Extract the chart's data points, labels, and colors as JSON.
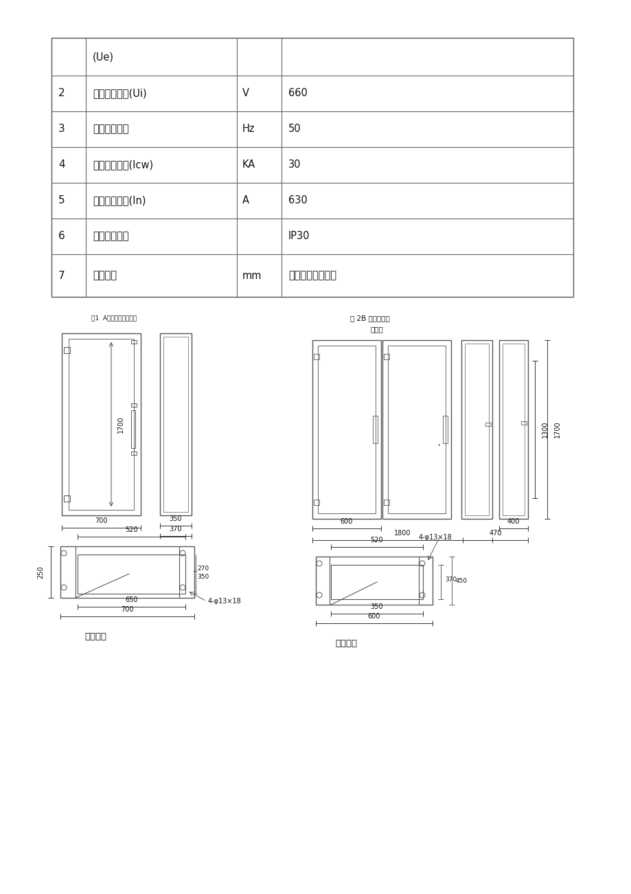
{
  "table_rows": [
    [
      "",
      "(Ue)",
      "",
      ""
    ],
    [
      "2",
      "额定绹缘电压(Ui)",
      "V",
      "660"
    ],
    [
      "3",
      "额定工作频率",
      "Hz",
      "50"
    ],
    [
      "4",
      "额定开断电流(Icw)",
      "KA",
      "30"
    ],
    [
      "5",
      "最大工作电流(In)",
      "A",
      "630"
    ],
    [
      "6",
      "外壳防护等级",
      "",
      "IP30"
    ],
    [
      "7",
      "外形尺寸",
      "mm",
      "具体根据方案确定"
    ]
  ],
  "fig_label1": "图1  A型结构安装外形图",
  "fig_label2a": "图 2B 型结构水部",
  "fig_label2b": "安装图",
  "bottom_label1": "底和安装",
  "bottom_label2": "底部安装",
  "bg_color": "#ffffff"
}
